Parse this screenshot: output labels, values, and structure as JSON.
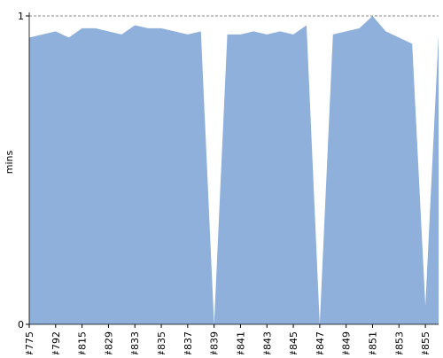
{
  "chart_data": {
    "type": "area",
    "y_label": "mins",
    "categories": [
      "#775",
      null,
      "#792",
      null,
      "#815",
      null,
      "#829",
      null,
      "#833",
      null,
      "#835",
      null,
      "#837",
      null,
      "#839",
      null,
      "#841",
      null,
      "#843",
      null,
      "#845",
      null,
      "#847",
      null,
      "#849",
      null,
      "#851",
      null,
      "#853",
      null,
      "#855",
      null
    ],
    "series": [
      {
        "color": "#8fb0db",
        "values": [
          0.93,
          0.94,
          0.95,
          0.93,
          0.96,
          0.96,
          0.95,
          0.94,
          0.97,
          0.96,
          0.96,
          0.95,
          0.94,
          0.95,
          0,
          0.94,
          0.94,
          0.95,
          0.94,
          0.95,
          0.94,
          0.97,
          0,
          0.94,
          0.95,
          0.96,
          1,
          0.95,
          0.93,
          0.91,
          0.06,
          0.94
        ]
      }
    ],
    "ylim": [
      0,
      1
    ],
    "yticks": [
      0,
      1
    ],
    "ref_line": 1
  }
}
